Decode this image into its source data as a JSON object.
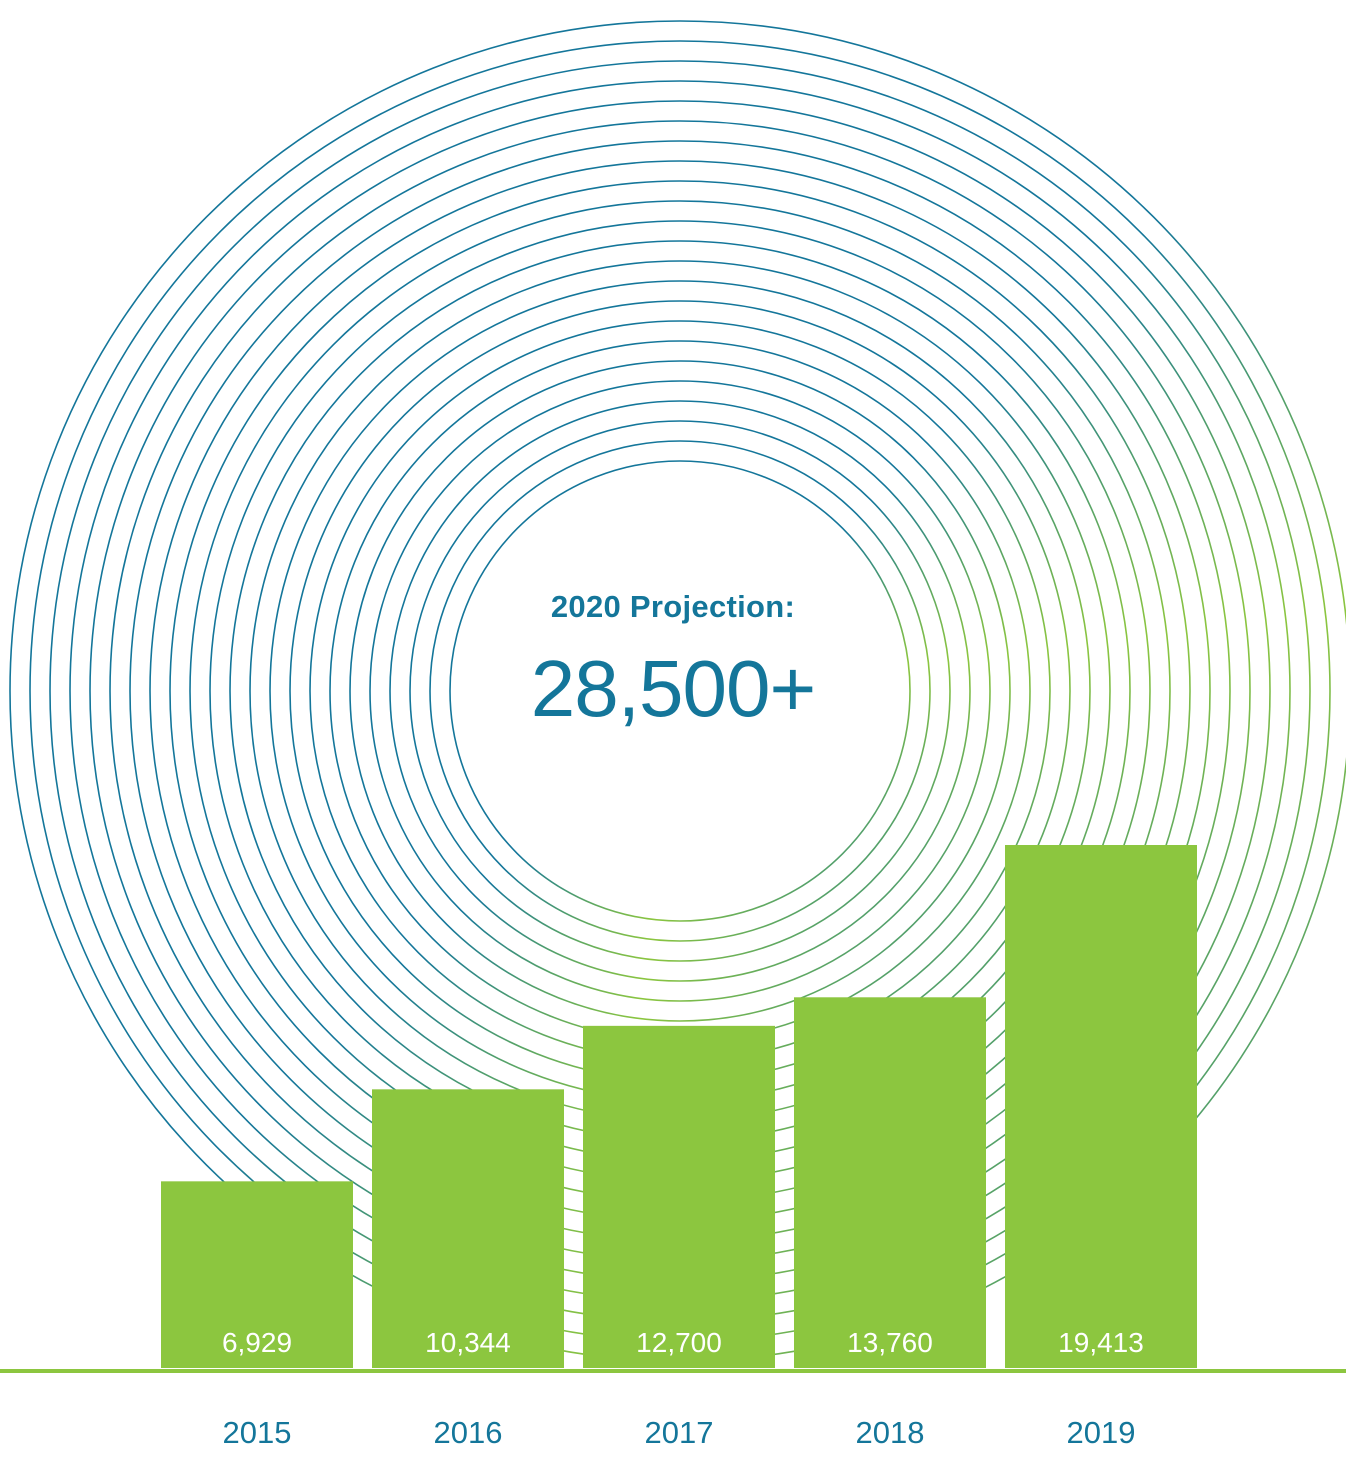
{
  "colors": {
    "bar": "#8CC63F",
    "teal": "#14769A",
    "ring_light": "#8CC63F",
    "value_label": "#ffffff",
    "baseline": "#8CC63F"
  },
  "projection": {
    "label": "2020 Projection:",
    "value": "28,500+"
  },
  "chart_data": {
    "type": "bar",
    "categories": [
      "2015",
      "2016",
      "2017",
      "2018",
      "2019"
    ],
    "values": [
      6929,
      10344,
      12700,
      13760,
      19413
    ],
    "value_labels": [
      "6,929",
      "10,344",
      "12,700",
      "13,760",
      "19,413"
    ],
    "title": "",
    "xlabel": "",
    "ylabel": "",
    "ylim": [
      0,
      19413
    ],
    "grid": false,
    "legend": "none"
  }
}
